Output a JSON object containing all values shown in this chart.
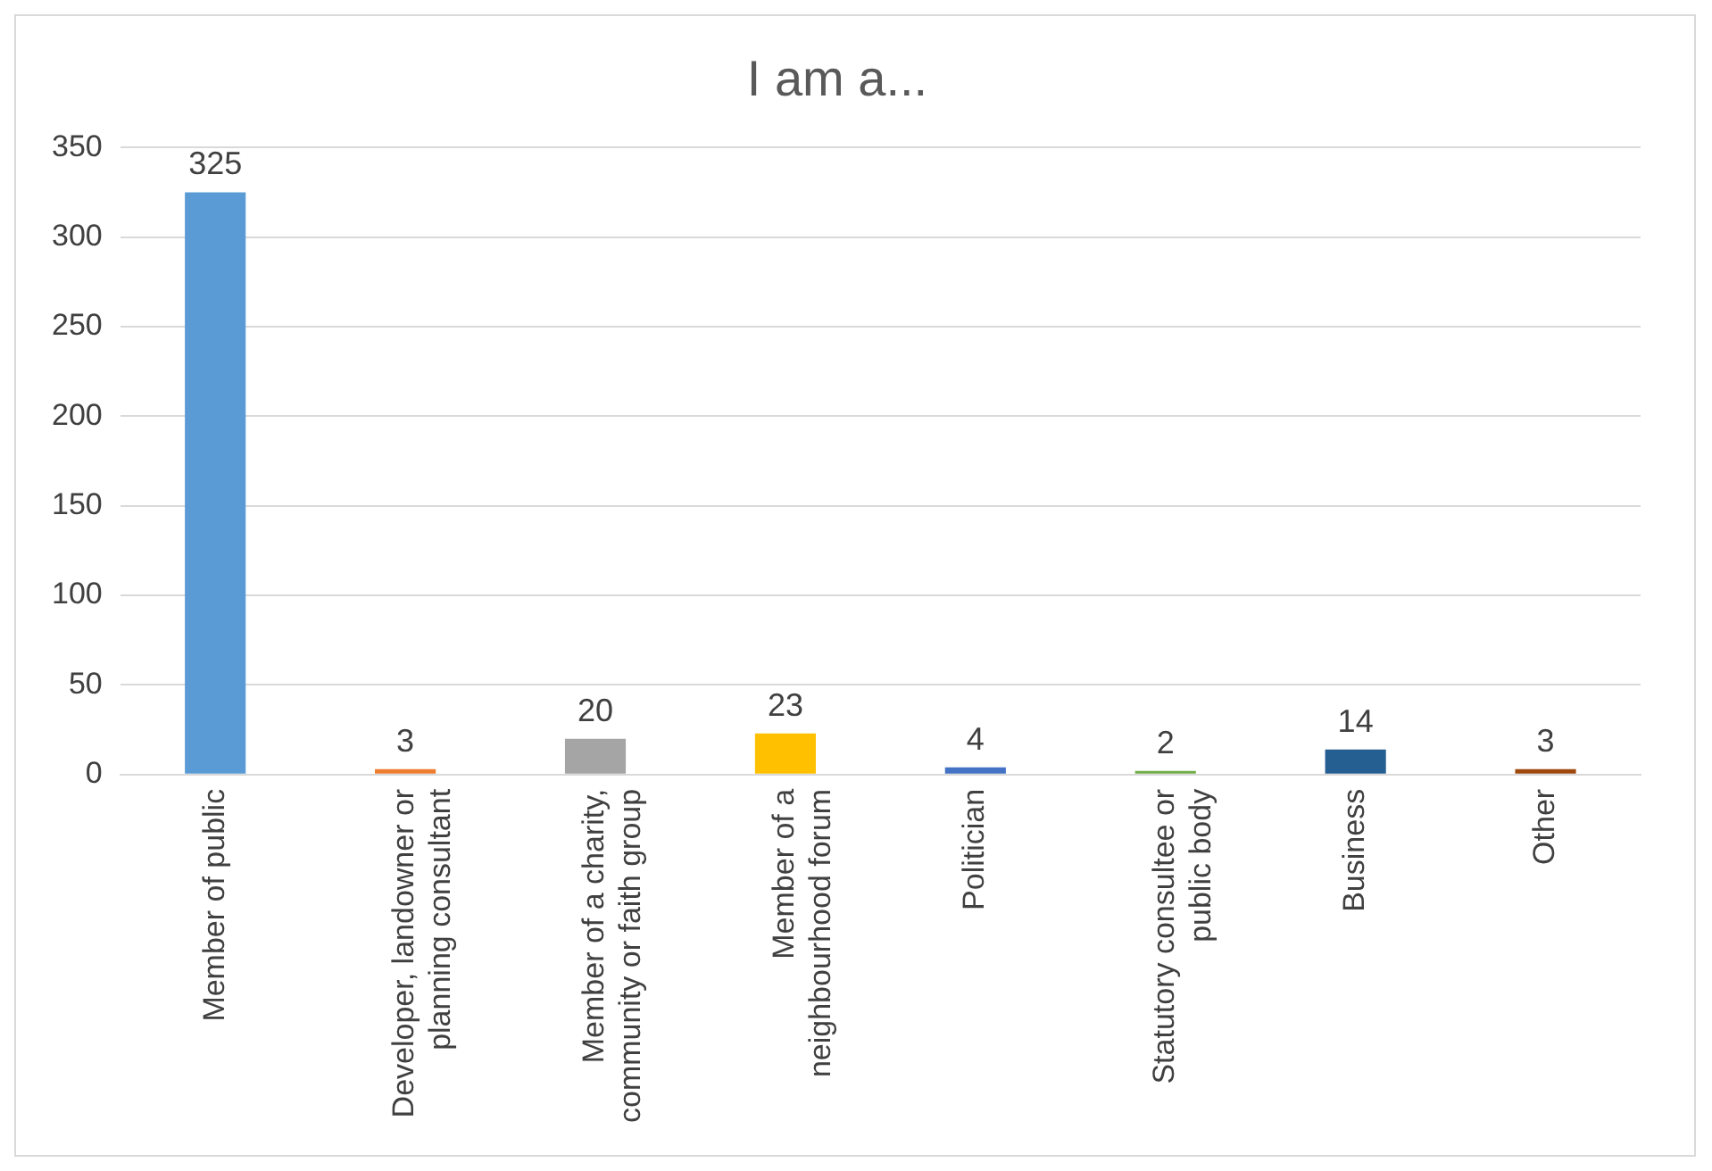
{
  "chart_data": {
    "type": "bar",
    "title": "I am a...",
    "categories": [
      "Member of public",
      "Developer, landowner or planning consultant",
      "Member of a charity, community or faith group",
      "Member of a neighbourhood forum",
      "Politician",
      "Statutory consultee or public body",
      "Business",
      "Other"
    ],
    "values": [
      325,
      3,
      20,
      23,
      4,
      2,
      14,
      3
    ],
    "colors": [
      "#5b9bd5",
      "#ed7d31",
      "#a5a5a5",
      "#ffc000",
      "#4472c4",
      "#70ad47",
      "#255e91",
      "#9e480e"
    ],
    "ylim": [
      0,
      350
    ],
    "yticks": [
      0,
      50,
      100,
      150,
      200,
      250,
      300,
      350
    ],
    "grid": "y",
    "data_labels": true,
    "legend": false
  }
}
